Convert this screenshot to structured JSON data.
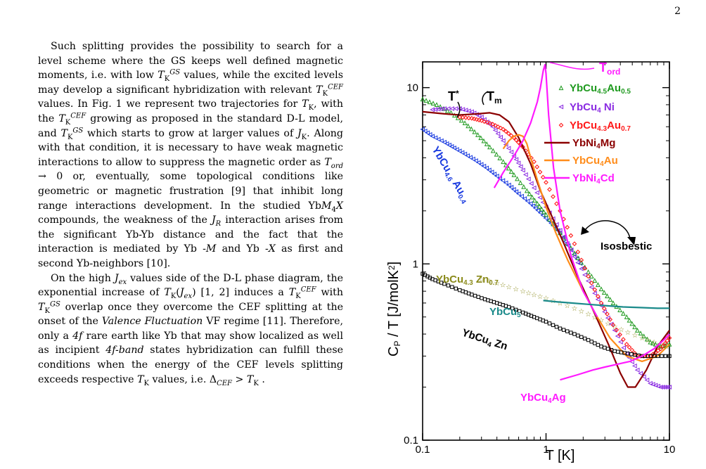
{
  "page": {
    "number": "2"
  },
  "paragraphs": [
    {
      "runs": [
        {
          "t": "Such splitting provides the possibility to search for a level scheme where the GS keeps well defined magnetic moments, i.e. with low "
        },
        {
          "t": "T",
          "i": true
        },
        {
          "t": "K",
          "sub": true
        },
        {
          "t": "GS",
          "sup": true,
          "i": true
        },
        {
          "t": " values, while the excited levels may develop a significant hybridization with relevant "
        },
        {
          "t": "T",
          "i": true
        },
        {
          "t": "K",
          "sub": true
        },
        {
          "t": "CEF",
          "sup": true,
          "i": true
        },
        {
          "t": " values. In Fig. 1 we represent two trajectories for "
        },
        {
          "t": "T",
          "i": true
        },
        {
          "t": "K",
          "sub": true
        },
        {
          "t": ", with the "
        },
        {
          "t": "T",
          "i": true
        },
        {
          "t": "K",
          "sub": true
        },
        {
          "t": "CEF",
          "sup": true,
          "i": true
        },
        {
          "t": " growing as proposed in the standard D-L model, and "
        },
        {
          "t": "T",
          "i": true
        },
        {
          "t": "K",
          "sub": true
        },
        {
          "t": "GS",
          "sup": true,
          "i": true
        },
        {
          "t": " which starts to grow at larger values of "
        },
        {
          "t": "J",
          "i": true
        },
        {
          "t": "K",
          "sub": true
        },
        {
          "t": ". Along with that condition, it is necessary to have weak magnetic interactions to allow to suppress the magnetic order as "
        },
        {
          "t": "T",
          "i": true
        },
        {
          "t": "ord",
          "sub": true,
          "i": true
        },
        {
          "t": " → 0 or, eventually, some topological conditions like geometric or magnetic frustration [9] that inhibit long range interactions development. In the studied Yb"
        },
        {
          "t": "M",
          "i": true
        },
        {
          "t": "4",
          "sub": true
        },
        {
          "t": "X",
          "i": true
        },
        {
          "t": " compounds, the weakness of the "
        },
        {
          "t": "J",
          "i": true
        },
        {
          "t": "R",
          "sub": true,
          "i": true
        },
        {
          "t": " interaction arises from the significant Yb-Yb distance and the fact that the interaction is mediated by Yb -"
        },
        {
          "t": "M",
          "i": true
        },
        {
          "t": " and Yb -"
        },
        {
          "t": "X",
          "i": true
        },
        {
          "t": " as first and second Yb-neighbors [10]."
        }
      ]
    },
    {
      "runs": [
        {
          "t": "On the high "
        },
        {
          "t": "J",
          "i": true
        },
        {
          "t": "ex",
          "sub": true,
          "i": true
        },
        {
          "t": " values side of the D-L phase diagram, the exponential increase of "
        },
        {
          "t": "T",
          "i": true
        },
        {
          "t": "K",
          "sub": true
        },
        {
          "t": "(",
          "i": false
        },
        {
          "t": "J",
          "i": true
        },
        {
          "t": "ex",
          "sub": true,
          "i": true
        },
        {
          "t": ")"
        },
        {
          "t": " [1, 2] induces a "
        },
        {
          "t": "T",
          "i": true
        },
        {
          "t": "K",
          "sub": true
        },
        {
          "t": "CEF",
          "sup": true,
          "i": true
        },
        {
          "t": " with "
        },
        {
          "t": "T",
          "i": true
        },
        {
          "t": "K",
          "sub": true
        },
        {
          "t": "GS",
          "sup": true,
          "i": true
        },
        {
          "t": " overlap once they overcome the CEF splitting at the onset of the "
        },
        {
          "t": "Valence Fluctuation",
          "i": true
        },
        {
          "t": " VF regime [11]. Therefore, only a "
        },
        {
          "t": "4f",
          "i": true
        },
        {
          "t": " rare earth like Yb that may show localized as well as incipient "
        },
        {
          "t": "4f-band",
          "i": true
        },
        {
          "t": " states hybridization can fulfill these conditions when the energy of the CEF levels splitting exceeds respective "
        },
        {
          "t": "T",
          "i": true
        },
        {
          "t": "K",
          "sub": true
        },
        {
          "t": " values, i.e. Δ"
        },
        {
          "t": "CEF",
          "sub": true,
          "i": true
        },
        {
          "t": " > "
        },
        {
          "t": "T",
          "i": true
        },
        {
          "t": "K",
          "sub": true
        },
        {
          "t": " ."
        }
      ]
    }
  ],
  "chart_data": {
    "type": "line",
    "x_scale": "log",
    "y_scale": "log",
    "xlim": [
      0.1,
      10
    ],
    "ylim": [
      0.1,
      14
    ],
    "xlabel": "T  [K]",
    "ylabel": "C",
    "ylabel_sub": "P",
    "ylabel_rest": " / T [J/molK",
    "ylabel_sup": "2",
    "ylabel_end": "]",
    "x_ticks": [
      "0.1",
      "1",
      "10"
    ],
    "y_ticks": [
      "0.1",
      "1",
      "10"
    ],
    "y_tick_values": [
      0.1,
      1,
      10
    ],
    "x_tick_values": [
      0.1,
      1,
      10
    ],
    "annotations": {
      "tstar": "T",
      "tstar_sup": "*",
      "tm": "T",
      "tm_sub": "m",
      "tord": "T",
      "tord_sub": "ord",
      "isosbestic": "Isosbestic"
    },
    "series": [
      {
        "name": "YbCu4.6Au0.4",
        "label": [
          [
            "YbCu",
            ""
          ],
          [
            "4.6",
            "sub"
          ],
          [
            " Au",
            ""
          ],
          [
            "0.4",
            "sub"
          ]
        ],
        "color": "#1a3be0",
        "marker": "triangle-left-open",
        "x": [
          0.1,
          0.12,
          0.15,
          0.18,
          0.22,
          0.27,
          0.33,
          0.4,
          0.5,
          0.6,
          0.75,
          0.9,
          1.1,
          1.3,
          1.6,
          2.0
        ],
        "y": [
          5.8,
          5.3,
          4.9,
          4.55,
          4.2,
          3.85,
          3.5,
          3.15,
          2.8,
          2.5,
          2.2,
          1.95,
          1.7,
          1.5,
          1.2,
          0.95
        ]
      },
      {
        "name": "YbCu4.5Au0.5",
        "label": [
          [
            "YbCu",
            ""
          ],
          [
            "4.5",
            "sub"
          ],
          [
            "Au",
            ""
          ],
          [
            "0.5",
            "sub"
          ]
        ],
        "color": "#1f9a1f",
        "marker": "triangle-open",
        "x": [
          0.1,
          0.13,
          0.17,
          0.22,
          0.28,
          0.35,
          0.45,
          0.55,
          0.7,
          0.85,
          1.0,
          1.3,
          1.7,
          2.2,
          2.8,
          3.5,
          4.5,
          5.5,
          7,
          8.5,
          10
        ],
        "y": [
          8.6,
          8.0,
          7.2,
          6.3,
          5.4,
          4.6,
          3.8,
          3.2,
          2.6,
          2.2,
          1.9,
          1.5,
          1.15,
          0.9,
          0.72,
          0.6,
          0.5,
          0.42,
          0.36,
          0.34,
          0.35
        ]
      },
      {
        "name": "YbCu4Ni",
        "label": [
          [
            "YbCu",
            ""
          ],
          [
            "4",
            "sub"
          ],
          [
            " Ni",
            ""
          ]
        ],
        "color": "#8a2be2",
        "marker": "triangle-left-open",
        "x": [
          0.12,
          0.15,
          0.2,
          0.25,
          0.3,
          0.37,
          0.45,
          0.55,
          0.65,
          0.8,
          1.0,
          1.3,
          1.7,
          2.2,
          2.8,
          3.6,
          4.5,
          5.5,
          7,
          8.5,
          10
        ],
        "y": [
          7.5,
          7.6,
          7.6,
          7.3,
          6.8,
          6.0,
          5.0,
          4.1,
          3.4,
          2.7,
          2.1,
          1.55,
          1.1,
          0.8,
          0.58,
          0.42,
          0.31,
          0.25,
          0.21,
          0.2,
          0.2
        ]
      },
      {
        "name": "YbCu4.3Au0.7",
        "label": [
          [
            "YbCu",
            ""
          ],
          [
            "4.3",
            "sub"
          ],
          [
            "Au",
            ""
          ],
          [
            "0.7",
            "sub"
          ]
        ],
        "color": "#ff1a1a",
        "marker": "diamond-open",
        "x": [
          0.2,
          0.25,
          0.3,
          0.37,
          0.45,
          0.55,
          0.65,
          0.8,
          1.0,
          1.3,
          1.7,
          2.2,
          2.8,
          3.5,
          4.5,
          5.5,
          7,
          8.5,
          10
        ],
        "y": [
          6.8,
          6.7,
          6.5,
          6.2,
          5.8,
          5.2,
          4.6,
          3.8,
          2.9,
          2.0,
          1.3,
          0.85,
          0.6,
          0.45,
          0.35,
          0.3,
          0.3,
          0.33,
          0.38
        ]
      },
      {
        "name": "YbNi4Mg",
        "label": [
          [
            "YbNi",
            ""
          ],
          [
            "4",
            "sub"
          ],
          [
            "Mg",
            ""
          ]
        ],
        "color": "#8b0000",
        "marker": "line",
        "x": [
          0.1,
          0.15,
          0.2,
          0.28,
          0.35,
          0.42,
          0.5,
          0.6,
          0.75,
          0.9,
          1.1,
          1.4,
          1.8,
          2.4,
          3.2,
          4.0,
          4.6,
          5.3,
          6.5,
          8,
          10
        ],
        "y": [
          7.3,
          7.1,
          7.0,
          7.1,
          7.2,
          7.0,
          6.4,
          5.2,
          3.7,
          2.6,
          1.9,
          1.3,
          0.85,
          0.55,
          0.35,
          0.24,
          0.2,
          0.2,
          0.25,
          0.34,
          0.42
        ]
      },
      {
        "name": "YbCu4Au",
        "label": [
          [
            "YbCu",
            ""
          ],
          [
            "4",
            "sub"
          ],
          [
            "Au",
            ""
          ]
        ],
        "color": "#ff8c1a",
        "marker": "line",
        "x": [
          0.45,
          0.5,
          0.55,
          0.6,
          0.65,
          0.7,
          0.75,
          0.85,
          1.0,
          1.2,
          1.5,
          2.0,
          2.6,
          3.3,
          4.5,
          6,
          8,
          10
        ],
        "y": [
          4.5,
          5.0,
          5.3,
          5.4,
          5.3,
          4.8,
          4.0,
          3.0,
          2.1,
          1.5,
          1.05,
          0.7,
          0.5,
          0.38,
          0.3,
          0.28,
          0.3,
          0.35
        ]
      },
      {
        "name": "YbNi4Cd",
        "label": [
          [
            "YbNi",
            ""
          ],
          [
            "4",
            "sub"
          ],
          [
            "Cd",
            ""
          ]
        ],
        "color": "#ff1aff",
        "marker": "line",
        "x": [
          0.38,
          0.45,
          0.55,
          0.65,
          0.75,
          0.85,
          0.9,
          0.95,
          0.98,
          1.0,
          1.05,
          1.15,
          1.3,
          1.6,
          2.0,
          2.6
        ],
        "y": [
          2.7,
          3.3,
          4.1,
          5.0,
          6.3,
          8.3,
          10.0,
          12.5,
          13.5,
          12.0,
          7.0,
          3.5,
          2.0,
          1.1,
          0.7,
          0.5
        ]
      },
      {
        "name": "YbCu4.3Zn0.7",
        "label": [
          [
            "YbCu",
            ""
          ],
          [
            "4.3",
            "sub"
          ],
          [
            " Zn",
            ""
          ],
          [
            "0.7",
            "sub"
          ]
        ],
        "color": "#8a8a1a",
        "marker": "star-open",
        "x": [
          0.3,
          0.4,
          0.5,
          0.65,
          0.8,
          1.0,
          1.3,
          1.7,
          2.2,
          2.8,
          3.6,
          4.6,
          6,
          7.5,
          9.5
        ],
        "y": [
          0.82,
          0.78,
          0.74,
          0.7,
          0.67,
          0.64,
          0.6,
          0.56,
          0.52,
          0.48,
          0.44,
          0.41,
          0.38,
          0.36,
          0.34
        ]
      },
      {
        "name": "YbCu5",
        "label": [
          [
            "YbCu",
            ""
          ],
          [
            "5",
            "sub"
          ]
        ],
        "color": "#1a8a8a",
        "marker": "line",
        "x": [
          0.95,
          1.2,
          1.6,
          2.2,
          3.0,
          4.2,
          6,
          8,
          10
        ],
        "y": [
          0.62,
          0.61,
          0.6,
          0.59,
          0.58,
          0.57,
          0.565,
          0.56,
          0.56
        ]
      },
      {
        "name": "YbCu4Zn",
        "label": [
          [
            "YbCu",
            ""
          ],
          [
            "4",
            "sub"
          ],
          [
            " Zn",
            ""
          ]
        ],
        "color": "#000000",
        "marker": "square-open",
        "x": [
          0.1,
          0.12,
          0.15,
          0.2,
          0.25,
          0.32,
          0.4,
          0.5,
          0.65,
          0.8,
          1.0,
          1.3,
          1.7,
          2.2,
          2.8,
          3.6,
          4.6,
          6,
          7.5,
          10
        ],
        "y": [
          0.88,
          0.82,
          0.77,
          0.71,
          0.67,
          0.63,
          0.6,
          0.57,
          0.53,
          0.5,
          0.47,
          0.43,
          0.4,
          0.37,
          0.34,
          0.32,
          0.31,
          0.3,
          0.3,
          0.3
        ]
      },
      {
        "name": "YbCu4Ag",
        "label": [
          [
            "YbCu",
            ""
          ],
          [
            "4",
            "sub"
          ],
          [
            "Ag",
            ""
          ]
        ],
        "color": "#ff1aff",
        "marker": "line",
        "x": [
          1.3,
          1.8,
          2.4,
          3.0,
          3.8,
          4.8,
          6,
          7.5,
          9,
          10
        ],
        "y": [
          0.22,
          0.235,
          0.25,
          0.26,
          0.27,
          0.28,
          0.3,
          0.33,
          0.37,
          0.4
        ]
      }
    ]
  }
}
